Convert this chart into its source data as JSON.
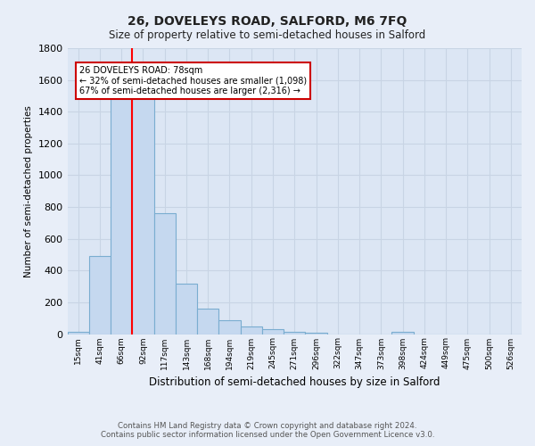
{
  "title": "26, DOVELEYS ROAD, SALFORD, M6 7FQ",
  "subtitle": "Size of property relative to semi-detached houses in Salford",
  "xlabel": "Distribution of semi-detached houses by size in Salford",
  "ylabel": "Number of semi-detached properties",
  "footer_line1": "Contains HM Land Registry data © Crown copyright and database right 2024.",
  "footer_line2": "Contains public sector information licensed under the Open Government Licence v3.0.",
  "bin_labels": [
    "15sqm",
    "41sqm",
    "66sqm",
    "92sqm",
    "117sqm",
    "143sqm",
    "168sqm",
    "194sqm",
    "219sqm",
    "245sqm",
    "271sqm",
    "296sqm",
    "322sqm",
    "347sqm",
    "373sqm",
    "398sqm",
    "424sqm",
    "449sqm",
    "475sqm",
    "500sqm",
    "526sqm"
  ],
  "bin_values": [
    15,
    490,
    1500,
    1500,
    760,
    320,
    160,
    85,
    50,
    30,
    15,
    10,
    0,
    0,
    0,
    15,
    0,
    0,
    0,
    0,
    0
  ],
  "bar_color": "#c5d8ef",
  "bar_edge_color": "#7aadd0",
  "red_line_x": 2.5,
  "annotation_text_line1": "26 DOVELEYS ROAD: 78sqm",
  "annotation_text_line2": "← 32% of semi-detached houses are smaller (1,098)",
  "annotation_text_line3": "67% of semi-detached houses are larger (2,316) →",
  "annotation_box_color": "#ffffff",
  "annotation_box_edge_color": "#cc0000",
  "ylim": [
    0,
    1800
  ],
  "yticks": [
    0,
    200,
    400,
    600,
    800,
    1000,
    1200,
    1400,
    1600,
    1800
  ],
  "grid_color": "#c8d4e4",
  "background_color": "#e8eef8",
  "plot_bg_color": "#dce6f4"
}
